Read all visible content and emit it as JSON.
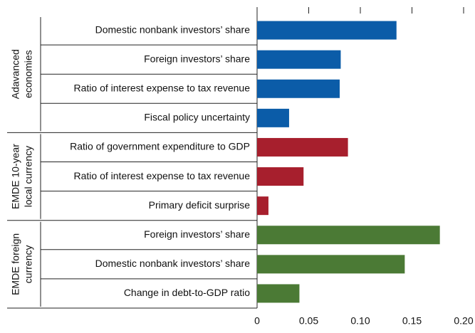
{
  "chart_data": {
    "type": "bar",
    "orientation": "horizontal",
    "groups": [
      {
        "name_lines": [
          "Adavanced",
          "economies"
        ],
        "color": "#0b5ca8",
        "categories": [
          "Domestic nonbank investors’ share",
          "Foreign investors’ share",
          "Ratio of interest expense to tax revenue",
          "Fiscal policy uncertainty"
        ],
        "values": [
          0.135,
          0.081,
          0.08,
          0.031
        ]
      },
      {
        "name_lines": [
          "EMDE 10-year",
          "local currency"
        ],
        "color": "#a71f2d",
        "categories": [
          "Ratio of government expenditure to GDP",
          "Ratio of interest expense to tax revenue",
          "Primary deficit surprise"
        ],
        "values": [
          0.088,
          0.045,
          0.011
        ]
      },
      {
        "name_lines": [
          "EMDE foreign",
          "currency"
        ],
        "color": "#4b7a35",
        "categories": [
          "Foreign investors’ share",
          "Domestic nonbank investors’ share",
          "Change in debt-to-GDP ratio"
        ],
        "values": [
          0.177,
          0.143,
          0.041
        ]
      }
    ],
    "xlim": [
      0,
      0.2
    ],
    "xticks": [
      0,
      0.05,
      {
        "value": 0.1,
        "label": "0.10"
      },
      0.15,
      {
        "value": 0.2,
        "label": "0.20"
      }
    ]
  }
}
